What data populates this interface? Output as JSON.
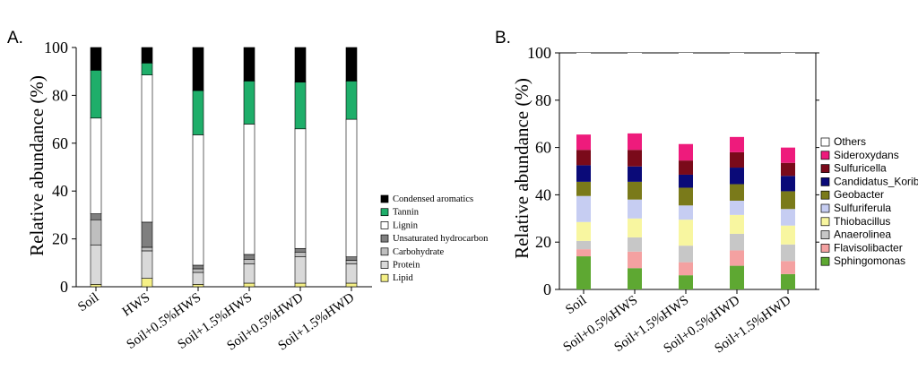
{
  "chart_data": [
    {
      "panel_label": "A.",
      "type": "bar",
      "stacked": true,
      "ylabel": "Relative abundance (%)",
      "ylim": [
        0,
        100
      ],
      "yticks": [
        0,
        20,
        40,
        60,
        80,
        100
      ],
      "grid": false,
      "legend_position": "right",
      "categories": [
        "Soil",
        "HWS",
        "Soil+0.5%HWS",
        "Soil+1.5%HWS",
        "Soil+0.5%HWD",
        "Soil+1.5%HWD"
      ],
      "series": [
        {
          "name": "Lipid",
          "color": "#f5f086",
          "values": [
            1.0,
            3.5,
            1.0,
            1.5,
            1.5,
            1.5
          ]
        },
        {
          "name": "Protein",
          "color": "#d9d9d9",
          "values": [
            16.5,
            11.5,
            5.0,
            8.0,
            11.0,
            8.0
          ]
        },
        {
          "name": "Carbohydrate",
          "color": "#bfbfbf",
          "values": [
            10.5,
            1.5,
            1.5,
            2.0,
            2.0,
            1.5
          ]
        },
        {
          "name": "Unsaturated hydrocarbon",
          "color": "#7f7f7f",
          "values": [
            2.5,
            10.5,
            1.5,
            2.0,
            1.5,
            1.5
          ]
        },
        {
          "name": "Lignin",
          "color": "#ffffff",
          "values": [
            40.0,
            61.5,
            54.5,
            54.5,
            50.0,
            57.5
          ]
        },
        {
          "name": "Tannin",
          "color": "#1fae6a",
          "values": [
            20.0,
            5.0,
            18.5,
            18.0,
            19.5,
            16.0
          ]
        },
        {
          "name": "Condensed aromatics",
          "color": "#000000",
          "values": [
            9.5,
            6.5,
            18.0,
            14.0,
            14.5,
            14.0
          ]
        }
      ]
    },
    {
      "panel_label": "B.",
      "type": "bar",
      "stacked": true,
      "ylabel": "Relative abundance (%)",
      "ylim": [
        0,
        100
      ],
      "yticks": [
        0,
        20,
        40,
        60,
        80,
        100
      ],
      "grid": false,
      "legend_position": "right",
      "categories": [
        "Soil",
        "Soil+0.5%HWS",
        "Soil+1.5%HWS",
        "Soil+0.5%HWD",
        "Soil+1.5%HWD"
      ],
      "series": [
        {
          "name": "Sphingomonas",
          "color": "#5ea832",
          "values": [
            14.0,
            9.0,
            6.0,
            10.0,
            6.5
          ]
        },
        {
          "name": "Flavisolibacter",
          "color": "#f4a1a1",
          "values": [
            3.0,
            7.0,
            5.5,
            6.5,
            5.5
          ]
        },
        {
          "name": "Anaerolinea",
          "color": "#c7c7c7",
          "values": [
            3.5,
            6.0,
            7.0,
            7.0,
            7.0
          ]
        },
        {
          "name": "Thiobacillus",
          "color": "#f8f6a0",
          "values": [
            8.0,
            8.0,
            11.0,
            8.0,
            8.0
          ]
        },
        {
          "name": "Sulfuriferula",
          "color": "#c6cdf2",
          "values": [
            11.0,
            8.0,
            6.0,
            6.0,
            7.0
          ]
        },
        {
          "name": "Geobacter",
          "color": "#7a7a1a",
          "values": [
            6.0,
            7.5,
            7.5,
            7.0,
            7.5
          ]
        },
        {
          "name": "Candidatus_Koribacter",
          "color": "#0a0a78",
          "values": [
            7.0,
            6.5,
            5.5,
            7.0,
            6.5
          ]
        },
        {
          "name": "Sulfuricella",
          "color": "#7a0a1a",
          "values": [
            6.5,
            7.0,
            6.0,
            6.5,
            5.5
          ]
        },
        {
          "name": "Sideroxydans",
          "color": "#ee1b7c",
          "values": [
            6.5,
            7.0,
            7.0,
            6.5,
            6.5
          ]
        },
        {
          "name": "Others",
          "color": "#ffffff",
          "values": [
            34.5,
            34.0,
            38.5,
            35.5,
            40.0
          ]
        }
      ]
    }
  ]
}
